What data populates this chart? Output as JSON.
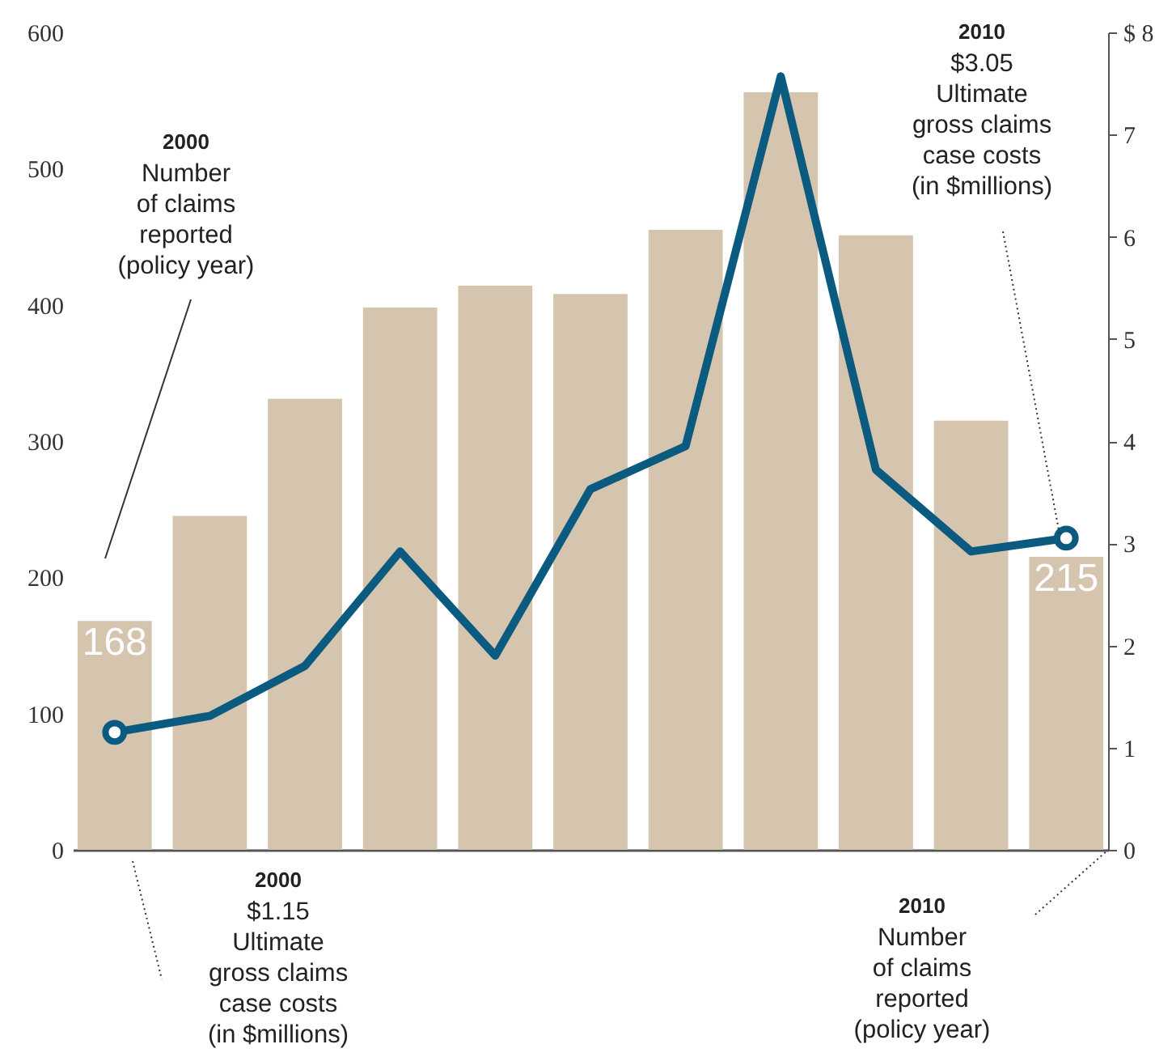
{
  "chart_data": {
    "type": "bar",
    "categories": [
      null,
      null,
      null,
      null,
      null,
      null,
      null,
      null,
      null,
      null,
      null
    ],
    "series": [
      {
        "axis": "y",
        "color": "#d5c4ae",
        "values": [
          168,
          245,
          331,
          398,
          414,
          408,
          455,
          556,
          451,
          315,
          215
        ],
        "value_labels": [
          "168",
          null,
          null,
          null,
          null,
          null,
          null,
          null,
          null,
          null,
          "215"
        ]
      },
      {
        "type": "line",
        "axis": "y2",
        "color": "#0b5a80",
        "values": [
          1.15,
          1.31,
          1.8,
          2.92,
          1.9,
          3.53,
          3.95,
          7.57,
          3.72,
          2.92,
          3.05
        ]
      }
    ],
    "ylim": [
      0,
      600
    ],
    "yticks": [
      0,
      100,
      200,
      300,
      400,
      500,
      600
    ],
    "y2lim": [
      0,
      8
    ],
    "y2ticks": [
      0,
      1,
      2,
      3,
      4,
      5,
      6,
      7,
      {
        "value": 8,
        "label": "$ 8"
      }
    ],
    "annotations": [
      "2000\nNumber\nof claims\nreported\n(policy year)",
      "2000\n$1.15\nUltimate\ngross claims\ncase costs\n(in $millions)",
      "2010\n$3.05\nUltimate\ngross claims\ncase costs\n(in $millions)",
      "2010\nNumber\nof claims\nreported\n(policy year)"
    ]
  }
}
